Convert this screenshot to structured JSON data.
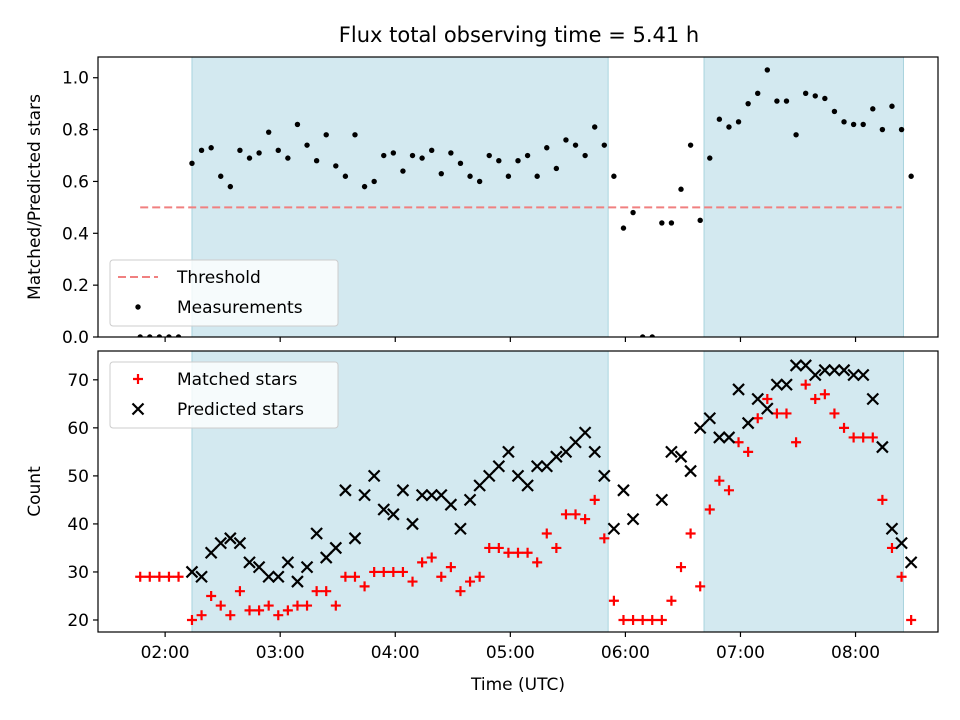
{
  "figure_title": "Flux total observing time = 5.41 h",
  "chart_data": [
    {
      "type": "scatter",
      "ylabel": "Matched/Predicted stars",
      "xlabel": "",
      "xlim": [
        "01:25",
        "08:43"
      ],
      "ylim": [
        0,
        1.08
      ],
      "yticks": [
        0.0,
        0.2,
        0.4,
        0.6,
        0.8,
        1.0
      ],
      "ytick_labels": [
        "0.0",
        "0.2",
        "0.4",
        "0.6",
        "0.8",
        "1.0"
      ],
      "xticks": [
        "02:00",
        "03:00",
        "04:00",
        "05:00",
        "06:00",
        "07:00",
        "08:00"
      ],
      "grid": false,
      "shaded_intervals": [
        [
          "02:14",
          "05:51"
        ],
        [
          "06:41",
          "08:25"
        ]
      ],
      "shade_color": "#d3e9f0",
      "threshold": {
        "name": "Threshold",
        "y": 0.5,
        "x_range": [
          "01:47",
          "08:24"
        ],
        "color": "#f08080"
      },
      "legend": {
        "placement": "lower-left",
        "entries": [
          "Threshold",
          "Measurements"
        ]
      },
      "series": [
        {
          "name": "Measurements",
          "color": "#000000",
          "points": [
            [
              "01:47",
              0.0
            ],
            [
              "01:52",
              0.0
            ],
            [
              "01:57",
              0.0
            ],
            [
              "02:02",
              0.0
            ],
            [
              "02:07",
              0.0
            ],
            [
              "02:14",
              0.67
            ],
            [
              "02:19",
              0.72
            ],
            [
              "02:24",
              0.73
            ],
            [
              "02:29",
              0.62
            ],
            [
              "02:34",
              0.58
            ],
            [
              "02:39",
              0.72
            ],
            [
              "02:44",
              0.69
            ],
            [
              "02:49",
              0.71
            ],
            [
              "02:54",
              0.79
            ],
            [
              "02:59",
              0.72
            ],
            [
              "03:04",
              0.69
            ],
            [
              "03:09",
              0.82
            ],
            [
              "03:14",
              0.74
            ],
            [
              "03:19",
              0.68
            ],
            [
              "03:24",
              0.78
            ],
            [
              "03:29",
              0.66
            ],
            [
              "03:34",
              0.62
            ],
            [
              "03:39",
              0.78
            ],
            [
              "03:44",
              0.58
            ],
            [
              "03:49",
              0.6
            ],
            [
              "03:54",
              0.7
            ],
            [
              "03:59",
              0.71
            ],
            [
              "04:04",
              0.64
            ],
            [
              "04:09",
              0.7
            ],
            [
              "04:14",
              0.69
            ],
            [
              "04:19",
              0.72
            ],
            [
              "04:24",
              0.63
            ],
            [
              "04:29",
              0.71
            ],
            [
              "04:34",
              0.67
            ],
            [
              "04:39",
              0.62
            ],
            [
              "04:44",
              0.6
            ],
            [
              "04:49",
              0.7
            ],
            [
              "04:54",
              0.68
            ],
            [
              "04:59",
              0.62
            ],
            [
              "05:04",
              0.68
            ],
            [
              "05:09",
              0.7
            ],
            [
              "05:14",
              0.62
            ],
            [
              "05:19",
              0.73
            ],
            [
              "05:24",
              0.65
            ],
            [
              "05:29",
              0.76
            ],
            [
              "05:34",
              0.74
            ],
            [
              "05:39",
              0.7
            ],
            [
              "05:44",
              0.81
            ],
            [
              "05:49",
              0.74
            ],
            [
              "05:54",
              0.62
            ],
            [
              "05:59",
              0.42
            ],
            [
              "06:04",
              0.48
            ],
            [
              "06:09",
              0.0
            ],
            [
              "06:14",
              0.0
            ],
            [
              "06:19",
              0.44
            ],
            [
              "06:24",
              0.44
            ],
            [
              "06:29",
              0.57
            ],
            [
              "06:34",
              0.74
            ],
            [
              "06:39",
              0.45
            ],
            [
              "06:44",
              0.69
            ],
            [
              "06:49",
              0.84
            ],
            [
              "06:54",
              0.81
            ],
            [
              "06:59",
              0.83
            ],
            [
              "07:04",
              0.9
            ],
            [
              "07:09",
              0.94
            ],
            [
              "07:14",
              1.03
            ],
            [
              "07:19",
              0.91
            ],
            [
              "07:24",
              0.91
            ],
            [
              "07:29",
              0.78
            ],
            [
              "07:34",
              0.94
            ],
            [
              "07:39",
              0.93
            ],
            [
              "07:44",
              0.92
            ],
            [
              "07:49",
              0.87
            ],
            [
              "07:54",
              0.83
            ],
            [
              "07:59",
              0.82
            ],
            [
              "08:04",
              0.82
            ],
            [
              "08:09",
              0.88
            ],
            [
              "08:14",
              0.8
            ],
            [
              "08:19",
              0.89
            ],
            [
              "08:24",
              0.8
            ],
            [
              "08:29",
              0.62
            ]
          ]
        }
      ]
    },
    {
      "type": "scatter",
      "ylabel": "Count",
      "xlabel": "Time (UTC)",
      "xlim": [
        "01:25",
        "08:43"
      ],
      "ylim": [
        17.5,
        76
      ],
      "yticks": [
        20,
        30,
        40,
        50,
        60,
        70
      ],
      "ytick_labels": [
        "20",
        "30",
        "40",
        "50",
        "60",
        "70"
      ],
      "xticks": [
        "02:00",
        "03:00",
        "04:00",
        "05:00",
        "06:00",
        "07:00",
        "08:00"
      ],
      "xtick_labels": [
        "02:00",
        "03:00",
        "04:00",
        "05:00",
        "06:00",
        "07:00",
        "08:00"
      ],
      "grid": false,
      "shaded_intervals": [
        [
          "02:14",
          "05:51"
        ],
        [
          "06:41",
          "08:25"
        ]
      ],
      "shade_color": "#d3e9f0",
      "legend": {
        "placement": "top-left",
        "entries": [
          "Matched stars",
          "Predicted stars"
        ]
      },
      "series": [
        {
          "name": "Matched stars",
          "marker": "plus",
          "color": "#ff0000",
          "points": [
            [
              "01:47",
              29
            ],
            [
              "01:52",
              29
            ],
            [
              "01:57",
              29
            ],
            [
              "02:02",
              29
            ],
            [
              "02:07",
              29
            ],
            [
              "02:14",
              20
            ],
            [
              "02:19",
              21
            ],
            [
              "02:24",
              25
            ],
            [
              "02:29",
              23
            ],
            [
              "02:34",
              21
            ],
            [
              "02:39",
              26
            ],
            [
              "02:44",
              22
            ],
            [
              "02:49",
              22
            ],
            [
              "02:54",
              23
            ],
            [
              "02:59",
              21
            ],
            [
              "03:04",
              22
            ],
            [
              "03:09",
              23
            ],
            [
              "03:14",
              23
            ],
            [
              "03:19",
              26
            ],
            [
              "03:24",
              26
            ],
            [
              "03:29",
              23
            ],
            [
              "03:34",
              29
            ],
            [
              "03:39",
              29
            ],
            [
              "03:44",
              27
            ],
            [
              "03:49",
              30
            ],
            [
              "03:54",
              30
            ],
            [
              "03:59",
              30
            ],
            [
              "04:04",
              30
            ],
            [
              "04:09",
              28
            ],
            [
              "04:14",
              32
            ],
            [
              "04:19",
              33
            ],
            [
              "04:24",
              29
            ],
            [
              "04:29",
              31
            ],
            [
              "04:34",
              26
            ],
            [
              "04:39",
              28
            ],
            [
              "04:44",
              29
            ],
            [
              "04:49",
              35
            ],
            [
              "04:54",
              35
            ],
            [
              "04:59",
              34
            ],
            [
              "05:04",
              34
            ],
            [
              "05:09",
              34
            ],
            [
              "05:14",
              32
            ],
            [
              "05:19",
              38
            ],
            [
              "05:24",
              35
            ],
            [
              "05:29",
              42
            ],
            [
              "05:34",
              42
            ],
            [
              "05:39",
              41
            ],
            [
              "05:44",
              45
            ],
            [
              "05:49",
              37
            ],
            [
              "05:54",
              24
            ],
            [
              "05:59",
              20
            ],
            [
              "06:04",
              20
            ],
            [
              "06:09",
              20
            ],
            [
              "06:14",
              20
            ],
            [
              "06:19",
              20
            ],
            [
              "06:24",
              24
            ],
            [
              "06:29",
              31
            ],
            [
              "06:34",
              38
            ],
            [
              "06:39",
              27
            ],
            [
              "06:44",
              43
            ],
            [
              "06:49",
              49
            ],
            [
              "06:54",
              47
            ],
            [
              "06:59",
              57
            ],
            [
              "07:04",
              55
            ],
            [
              "07:09",
              62
            ],
            [
              "07:14",
              66
            ],
            [
              "07:19",
              63
            ],
            [
              "07:24",
              63
            ],
            [
              "07:29",
              57
            ],
            [
              "07:34",
              69
            ],
            [
              "07:39",
              66
            ],
            [
              "07:44",
              67
            ],
            [
              "07:49",
              63
            ],
            [
              "07:54",
              60
            ],
            [
              "07:59",
              58
            ],
            [
              "08:04",
              58
            ],
            [
              "08:09",
              58
            ],
            [
              "08:14",
              45
            ],
            [
              "08:19",
              35
            ],
            [
              "08:24",
              29
            ],
            [
              "08:29",
              20
            ]
          ]
        },
        {
          "name": "Predicted stars",
          "marker": "x",
          "color": "#000000",
          "points": [
            [
              "02:14",
              30
            ],
            [
              "02:19",
              29
            ],
            [
              "02:24",
              34
            ],
            [
              "02:29",
              36
            ],
            [
              "02:34",
              37
            ],
            [
              "02:39",
              36
            ],
            [
              "02:44",
              32
            ],
            [
              "02:49",
              31
            ],
            [
              "02:54",
              29
            ],
            [
              "02:59",
              29
            ],
            [
              "03:04",
              32
            ],
            [
              "03:09",
              28
            ],
            [
              "03:14",
              31
            ],
            [
              "03:19",
              38
            ],
            [
              "03:24",
              33
            ],
            [
              "03:29",
              35
            ],
            [
              "03:34",
              47
            ],
            [
              "03:39",
              37
            ],
            [
              "03:44",
              46
            ],
            [
              "03:49",
              50
            ],
            [
              "03:54",
              43
            ],
            [
              "03:59",
              42
            ],
            [
              "04:04",
              47
            ],
            [
              "04:09",
              40
            ],
            [
              "04:14",
              46
            ],
            [
              "04:19",
              46
            ],
            [
              "04:24",
              46
            ],
            [
              "04:29",
              44
            ],
            [
              "04:34",
              39
            ],
            [
              "04:39",
              45
            ],
            [
              "04:44",
              48
            ],
            [
              "04:49",
              50
            ],
            [
              "04:54",
              52
            ],
            [
              "04:59",
              55
            ],
            [
              "05:04",
              50
            ],
            [
              "05:09",
              48
            ],
            [
              "05:14",
              52
            ],
            [
              "05:19",
              52
            ],
            [
              "05:24",
              54
            ],
            [
              "05:29",
              55
            ],
            [
              "05:34",
              57
            ],
            [
              "05:39",
              59
            ],
            [
              "05:44",
              55
            ],
            [
              "05:49",
              50
            ],
            [
              "05:54",
              39
            ],
            [
              "05:59",
              47
            ],
            [
              "06:04",
              41
            ],
            [
              "06:19",
              45
            ],
            [
              "06:24",
              55
            ],
            [
              "06:29",
              54
            ],
            [
              "06:34",
              51
            ],
            [
              "06:39",
              60
            ],
            [
              "06:44",
              62
            ],
            [
              "06:49",
              58
            ],
            [
              "06:54",
              58
            ],
            [
              "06:59",
              68
            ],
            [
              "07:04",
              61
            ],
            [
              "07:09",
              66
            ],
            [
              "07:14",
              64
            ],
            [
              "07:19",
              69
            ],
            [
              "07:24",
              69
            ],
            [
              "07:29",
              73
            ],
            [
              "07:34",
              73
            ],
            [
              "07:39",
              71
            ],
            [
              "07:44",
              72
            ],
            [
              "07:49",
              72
            ],
            [
              "07:54",
              72
            ],
            [
              "07:59",
              71
            ],
            [
              "08:04",
              71
            ],
            [
              "08:09",
              66
            ],
            [
              "08:14",
              56
            ],
            [
              "08:19",
              39
            ],
            [
              "08:24",
              36
            ],
            [
              "08:29",
              32
            ]
          ]
        }
      ]
    }
  ]
}
